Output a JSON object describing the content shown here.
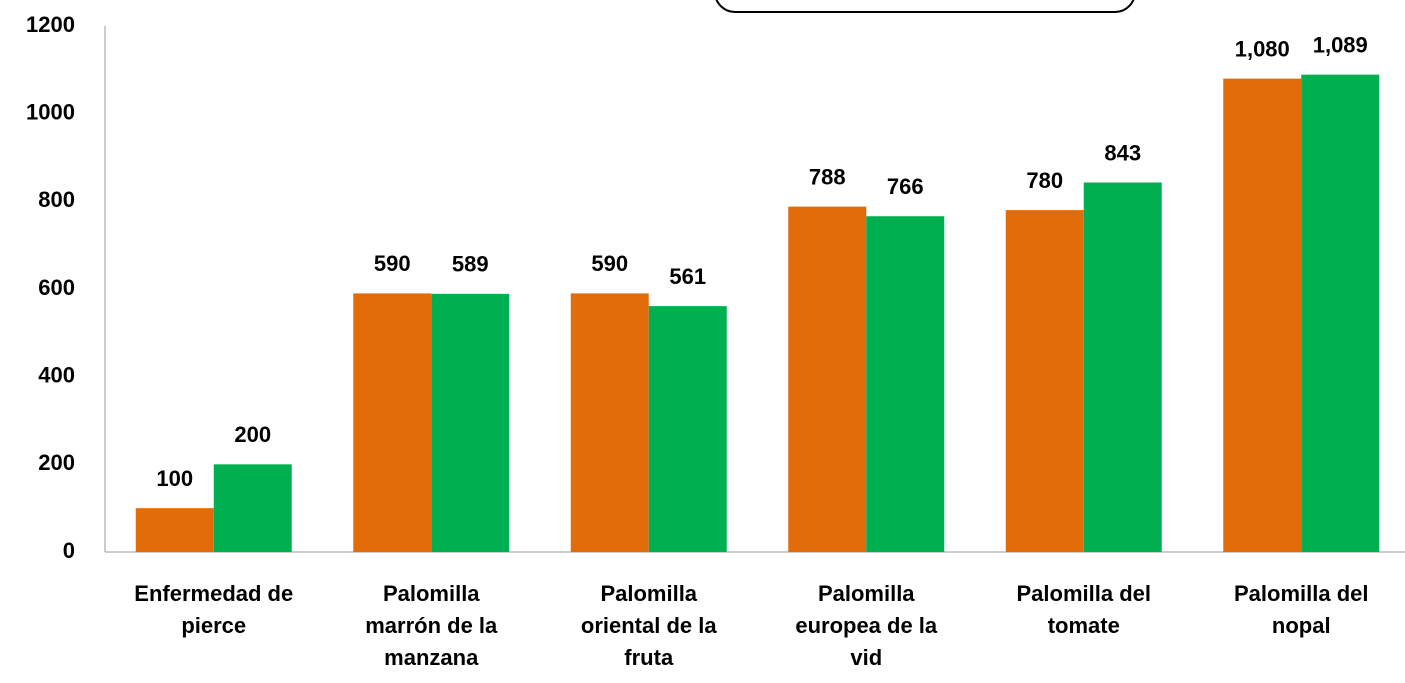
{
  "chart_data": {
    "type": "bar",
    "categories": [
      "Enfermedad de\npierce",
      "Palomilla\nmarrón de la\nmanzana",
      "Palomilla\noriental de la\nfruta",
      "Palomilla\neuropea de la\nvid",
      "Palomilla del\ntomate",
      "Palomilla del\nnopal"
    ],
    "series": [
      {
        "color": "#e36c0a",
        "values": [
          100,
          590,
          590,
          788,
          780,
          1080
        ],
        "value_labels": [
          "100",
          "590",
          "590",
          "788",
          "780",
          "1,080"
        ]
      },
      {
        "color": "#00b050",
        "values": [
          200,
          589,
          561,
          766,
          843,
          1089
        ],
        "value_labels": [
          "200",
          "589",
          "561",
          "766",
          "843",
          "1,089"
        ]
      }
    ],
    "ylim": [
      0,
      1200
    ],
    "yticks": [
      0,
      200,
      400,
      600,
      800,
      1000,
      1200
    ],
    "grid": false
  }
}
